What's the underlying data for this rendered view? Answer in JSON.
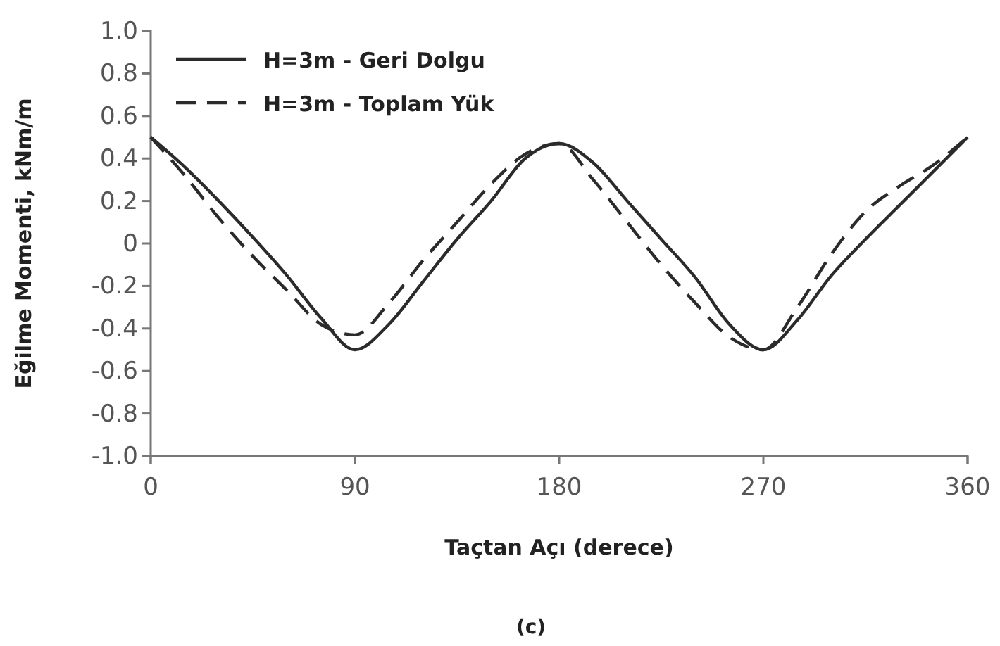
{
  "chart_data": {
    "type": "line",
    "xlabel": "Taçtan Açı (derece)",
    "ylabel": "Eğilme Momenti, kNm/m",
    "x": [
      0,
      15,
      30,
      45,
      60,
      75,
      90,
      105,
      120,
      135,
      150,
      165,
      180,
      195,
      210,
      225,
      240,
      255,
      270,
      285,
      300,
      315,
      330,
      345,
      360
    ],
    "series": [
      {
        "name": "H=3m - Geri Dolgu",
        "color": "#2b2b2b",
        "line_style": "solid",
        "values": [
          0.5,
          0.36,
          0.2,
          0.03,
          -0.15,
          -0.35,
          -0.5,
          -0.38,
          -0.18,
          0.02,
          0.2,
          0.4,
          0.47,
          0.38,
          0.2,
          0.02,
          -0.16,
          -0.38,
          -0.5,
          -0.36,
          -0.15,
          0.02,
          0.18,
          0.34,
          0.5
        ]
      },
      {
        "name": "H=3m - Toplam Yük",
        "color": "#2b2b2b",
        "line_style": "dashed",
        "values": [
          0.5,
          0.32,
          0.12,
          -0.06,
          -0.22,
          -0.38,
          -0.43,
          -0.28,
          -0.08,
          0.1,
          0.28,
          0.42,
          0.47,
          0.3,
          0.1,
          -0.1,
          -0.28,
          -0.44,
          -0.5,
          -0.3,
          -0.05,
          0.15,
          0.27,
          0.37,
          0.5
        ]
      }
    ],
    "xlim": [
      0,
      360
    ],
    "xticks": [
      0,
      90,
      180,
      270,
      360
    ],
    "ylim": [
      -1,
      1
    ],
    "yticks": [
      {
        "value": -1,
        "label": "-1.0"
      },
      -0.8,
      -0.6,
      -0.4,
      -0.2,
      0,
      0.2,
      0.4,
      0.6,
      0.8,
      {
        "value": 1,
        "label": "1.0"
      }
    ],
    "legend": "top left",
    "marker": "none",
    "annotations": [
      "(c)"
    ]
  }
}
